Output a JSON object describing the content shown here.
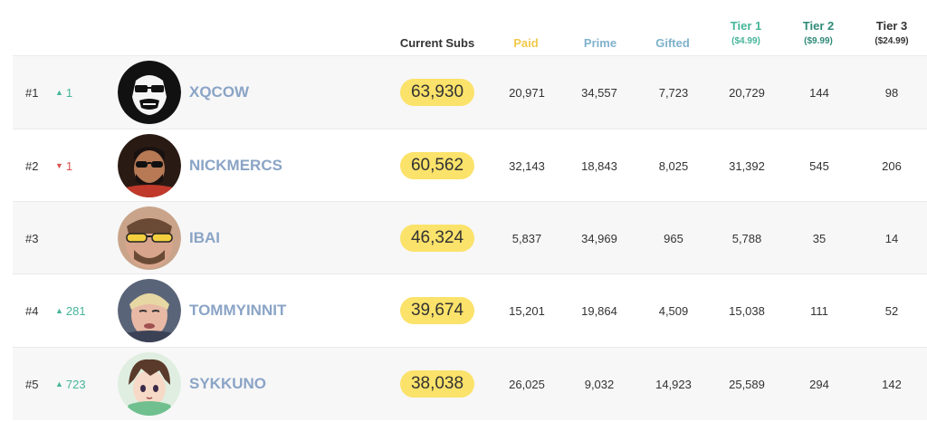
{
  "headers": {
    "current_subs": "Current Subs",
    "paid": "Paid",
    "prime": "Prime",
    "gifted": "Gifted",
    "tier1": "Tier 1",
    "tier1_price": "($4.99)",
    "tier2": "Tier 2",
    "tier2_price": "($9.99)",
    "tier3": "Tier 3",
    "tier3_price": "($24.99)"
  },
  "colors": {
    "paid": "#f2c94c",
    "prime": "#7fb2cc",
    "gifted": "#7fb2cc",
    "tier1": "#45b59a",
    "tier2": "#2f8a78",
    "tier3": "#333333",
    "pill": "#fbe26a",
    "name": "#8aa4c6"
  },
  "rows": [
    {
      "rank": "#1",
      "change": "1",
      "direction": "up",
      "avatar_icon": "gorilla-avatar-icon",
      "name": "XQCOW",
      "current_subs": "63,930",
      "paid": "20,971",
      "prime": "34,557",
      "gifted": "7,723",
      "tier1": "20,729",
      "tier2": "144",
      "tier3": "98"
    },
    {
      "rank": "#2",
      "change": "1",
      "direction": "down",
      "avatar_icon": "sunglasses-man-avatar-icon",
      "name": "NICKMERCS",
      "current_subs": "60,562",
      "paid": "32,143",
      "prime": "18,843",
      "gifted": "8,025",
      "tier1": "31,392",
      "tier2": "545",
      "tier3": "206"
    },
    {
      "rank": "#3",
      "change": "",
      "direction": "none",
      "avatar_icon": "yellow-glasses-avatar-icon",
      "name": "IBAI",
      "current_subs": "46,324",
      "paid": "5,837",
      "prime": "34,969",
      "gifted": "965",
      "tier1": "5,788",
      "tier2": "35",
      "tier3": "14"
    },
    {
      "rank": "#4",
      "change": "281",
      "direction": "up",
      "avatar_icon": "blonde-boy-avatar-icon",
      "name": "TOMMYINNIT",
      "current_subs": "39,674",
      "paid": "15,201",
      "prime": "19,864",
      "gifted": "4,509",
      "tier1": "15,038",
      "tier2": "111",
      "tier3": "52"
    },
    {
      "rank": "#5",
      "change": "723",
      "direction": "up",
      "avatar_icon": "anime-boy-avatar-icon",
      "name": "SYKKUNO",
      "current_subs": "38,038",
      "paid": "26,025",
      "prime": "9,032",
      "gifted": "14,923",
      "tier1": "25,589",
      "tier2": "294",
      "tier3": "142"
    }
  ]
}
